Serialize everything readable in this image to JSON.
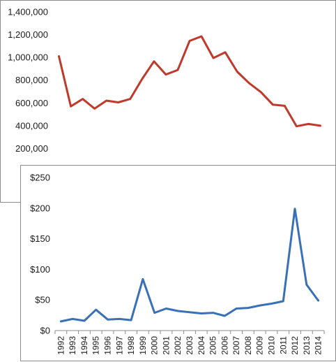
{
  "chart_data": [
    {
      "type": "line",
      "title": "",
      "xlabel": "",
      "ylabel": "",
      "ylim": [
        0,
        1400000
      ],
      "yticks": [
        "",
        "200,000",
        "400,000",
        "600,000",
        "800,000",
        "1,000,000",
        "1,200,000",
        "1,400,000"
      ],
      "ytick_values": [
        0,
        200000,
        400000,
        600000,
        800000,
        1000000,
        1200000,
        1400000
      ],
      "grid": false,
      "legend": "none",
      "x": [
        "1992",
        "1993",
        "1994",
        "1995",
        "1996",
        "1997",
        "1998",
        "1999",
        "2000",
        "2001",
        "2002",
        "2003",
        "2004",
        "2005",
        "2006",
        "2007",
        "2008",
        "2009",
        "2010",
        "2011",
        "2012",
        "2013",
        "2014"
      ],
      "series": [
        {
          "color": "#c0392b",
          "values": [
            1010000,
            570000,
            635000,
            550000,
            620000,
            605000,
            635000,
            810000,
            965000,
            850000,
            890000,
            1145000,
            1185000,
            995000,
            1045000,
            875000,
            775000,
            695000,
            585000,
            575000,
            395000,
            415000,
            400000
          ]
        }
      ]
    },
    {
      "type": "line",
      "title": "",
      "xlabel": "",
      "ylabel": "",
      "ylim": [
        0,
        250
      ],
      "yticks": [
        "$0",
        "$50",
        "$100",
        "$150",
        "$200",
        "$250"
      ],
      "ytick_values": [
        0,
        50,
        100,
        150,
        200,
        250
      ],
      "grid": false,
      "legend": "none",
      "x": [
        "1992",
        "1993",
        "1994",
        "1995",
        "1996",
        "1997",
        "1998",
        "1999",
        "2000",
        "2001",
        "2002",
        "2003",
        "2004",
        "2005",
        "2006",
        "2007",
        "2008",
        "2009",
        "2010",
        "2011",
        "2012",
        "2013",
        "2014"
      ],
      "series": [
        {
          "color": "#3a70b5",
          "values": [
            15,
            19,
            16,
            34,
            18,
            19,
            17,
            84,
            29,
            36,
            32,
            30,
            28,
            29,
            24,
            36,
            37,
            41,
            44,
            48,
            199,
            75,
            49
          ]
        }
      ]
    }
  ]
}
